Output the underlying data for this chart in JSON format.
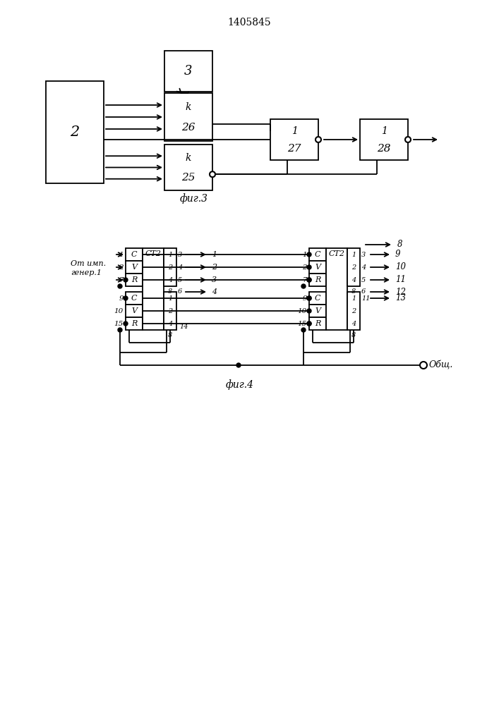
{
  "title": "1405845",
  "fig3_label": "фиг.3",
  "fig4_label": "фиг.4",
  "bg_color": "#ffffff",
  "line_color": "#000000"
}
